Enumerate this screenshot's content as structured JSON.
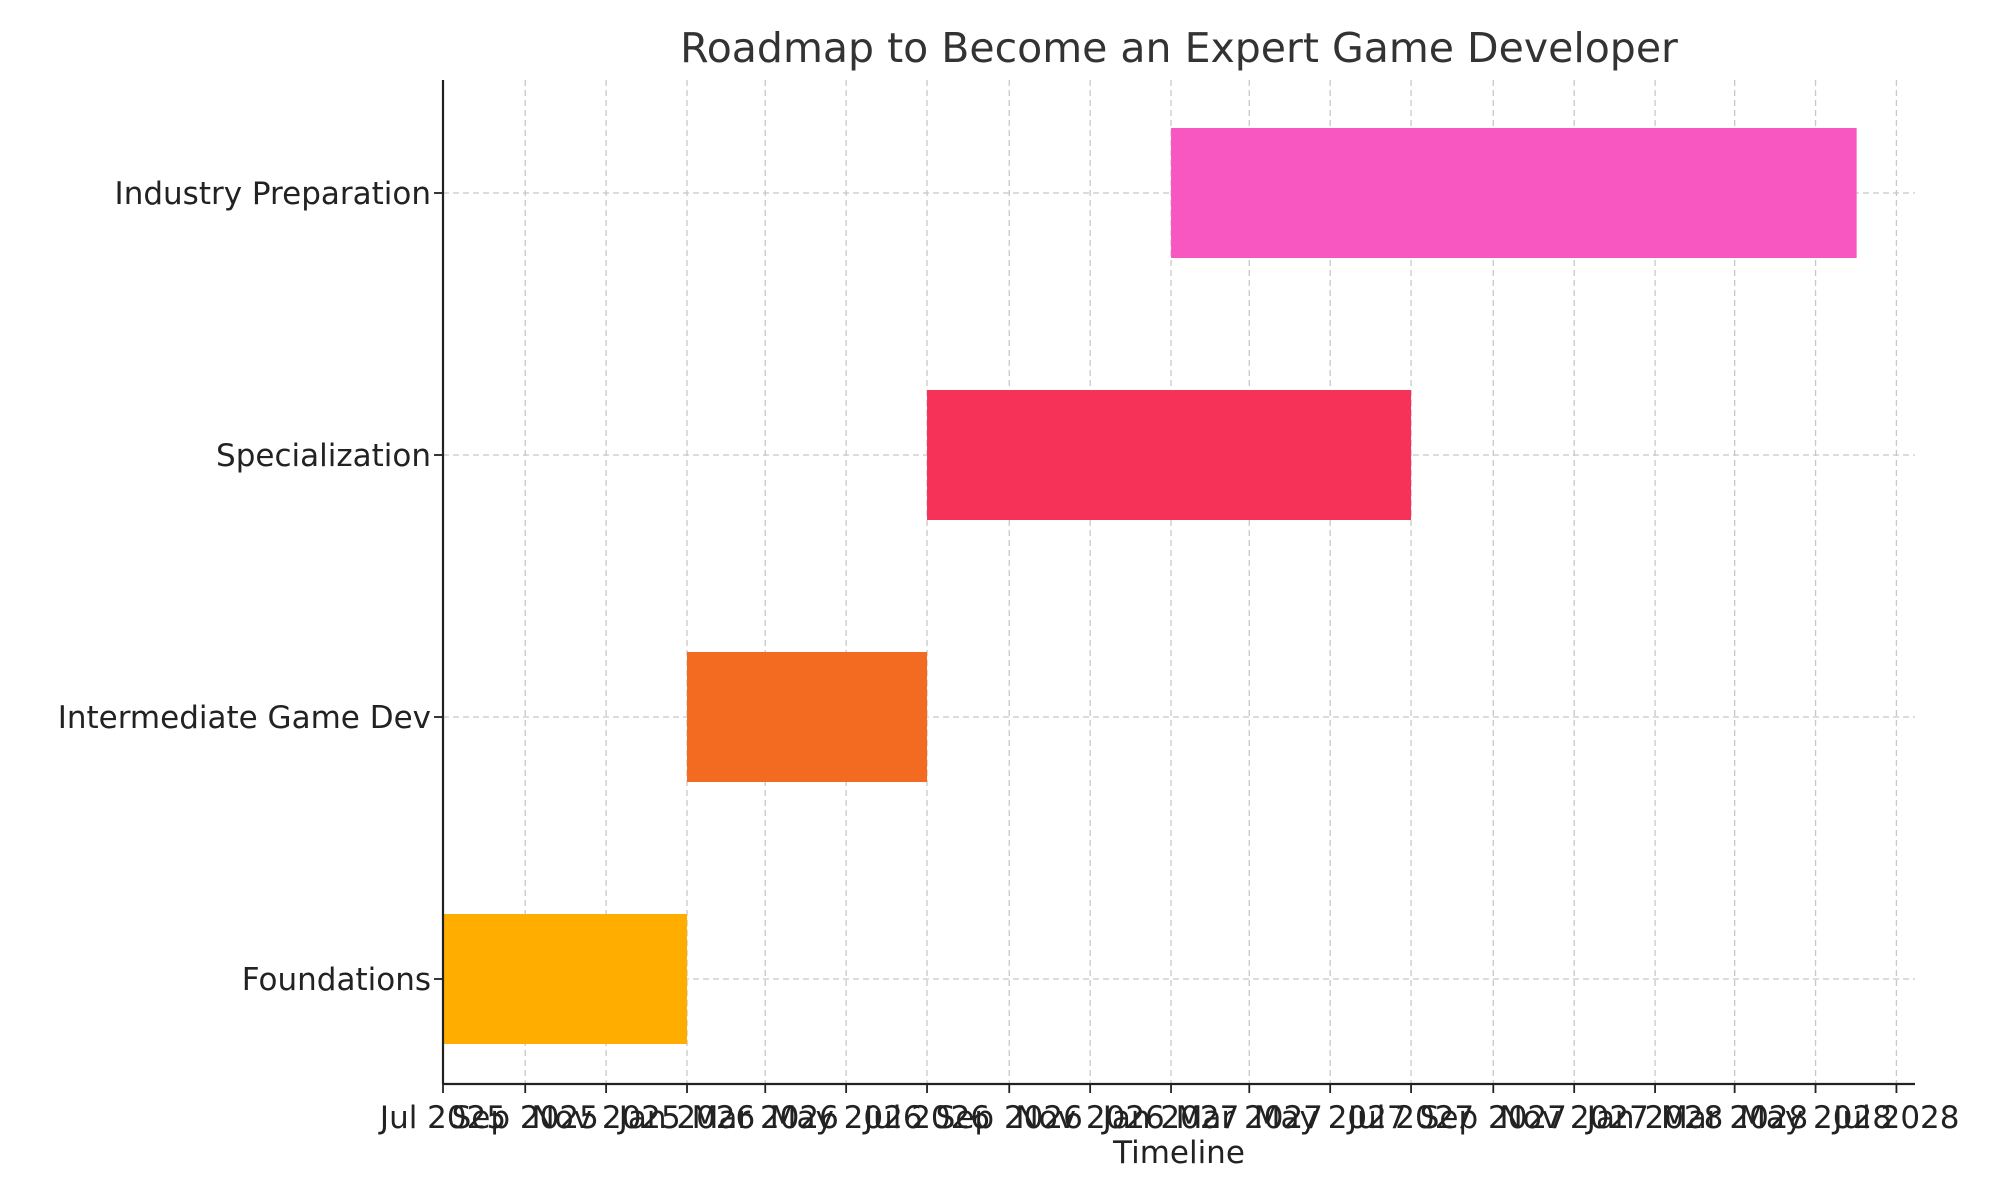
{
  "chart_data": {
    "type": "bar",
    "orientation": "horizontal",
    "title": "Roadmap to Become an Expert Game Developer",
    "xlabel": "Timeline",
    "ylabel": "",
    "xlim": [
      "2025-07-01",
      "2028-07-15"
    ],
    "grid": true,
    "x_ticks": [
      {
        "date": "2025-07-01",
        "label": "Jul 2025"
      },
      {
        "date": "2025-09-01",
        "label": "Sep 2025"
      },
      {
        "date": "2025-11-01",
        "label": "Nov 2025"
      },
      {
        "date": "2026-01-01",
        "label": "Jan 2026"
      },
      {
        "date": "2026-03-01",
        "label": "Mar 2026"
      },
      {
        "date": "2026-05-01",
        "label": "May 2026"
      },
      {
        "date": "2026-07-01",
        "label": "Jul 2026"
      },
      {
        "date": "2026-09-01",
        "label": "Sep 2026"
      },
      {
        "date": "2026-11-01",
        "label": "Nov 2026"
      },
      {
        "date": "2027-01-01",
        "label": "Jan 2027"
      },
      {
        "date": "2027-03-01",
        "label": "Mar 2027"
      },
      {
        "date": "2027-05-01",
        "label": "May 2027"
      },
      {
        "date": "2027-07-01",
        "label": "Jul 2027"
      },
      {
        "date": "2027-09-01",
        "label": "Sep 2027"
      },
      {
        "date": "2027-11-01",
        "label": "Nov 2027"
      },
      {
        "date": "2028-01-01",
        "label": "Jan 2028"
      },
      {
        "date": "2028-03-01",
        "label": "Mar 2028"
      },
      {
        "date": "2028-05-01",
        "label": "May 2028"
      },
      {
        "date": "2028-07-01",
        "label": "Jul 2028"
      }
    ],
    "tasks": [
      {
        "name": "Foundations",
        "start": "2025-07-01",
        "end": "2026-01-01",
        "color": "#FFAE00"
      },
      {
        "name": "Intermediate Game Dev",
        "start": "2026-01-01",
        "end": "2026-07-01",
        "color": "#F26B21"
      },
      {
        "name": "Specialization",
        "start": "2026-07-01",
        "end": "2027-07-01",
        "color": "#F73258"
      },
      {
        "name": "Industry Preparation",
        "start": "2027-01-01",
        "end": "2028-06-01",
        "color": "#F857C1"
      }
    ]
  }
}
